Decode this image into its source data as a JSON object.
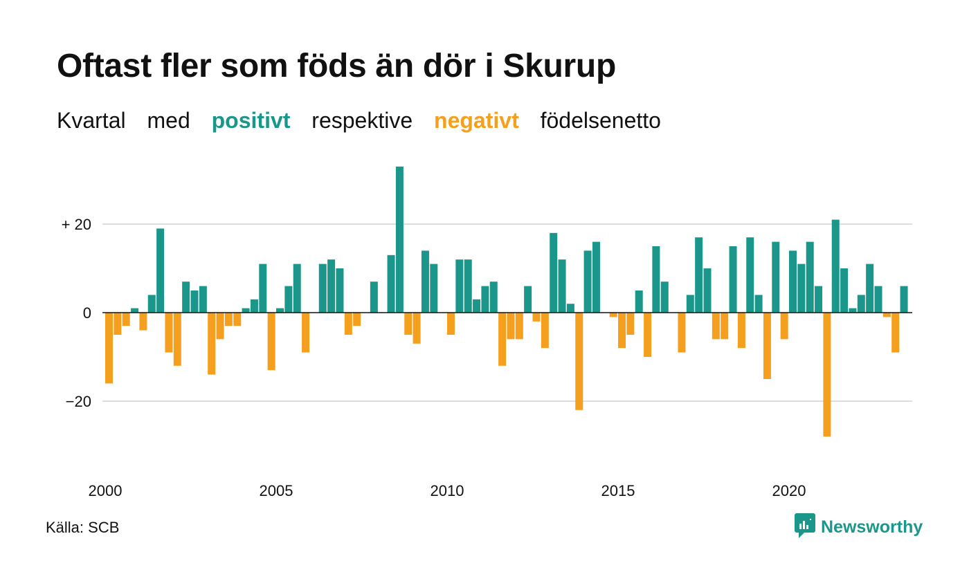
{
  "header": {
    "title": "Oftast fler som föds än dör i Skurup",
    "subtitle": {
      "w1": "Kvartal",
      "w2": "med",
      "w3": "positivt",
      "w4": "respektive",
      "w5": "negativt",
      "w6": "födelsenetto"
    }
  },
  "footer": {
    "source": "Källa: SCB",
    "brand": "Newsworthy"
  },
  "colors": {
    "positive": "#1b968a",
    "negative": "#f59f1f",
    "grid": "#dddddd",
    "axis": "#111111"
  },
  "icons": {
    "brand_logo": "newsworthy-logo-icon"
  },
  "chart_data": {
    "type": "bar",
    "title": "Oftast fler som föds än dör i Skurup",
    "subtitle": "Kvartal med positivt respektive negativt födelsenetto",
    "xlabel": "",
    "ylabel": "",
    "ylim": [
      -32,
      34
    ],
    "yticks": [
      {
        "value": 20,
        "label": "+ 20"
      },
      {
        "value": 0,
        "label": "0"
      },
      {
        "value": -20,
        "label": "−20"
      }
    ],
    "xticks": [
      {
        "year": 2000,
        "label": "2000"
      },
      {
        "year": 2005,
        "label": "2005"
      },
      {
        "year": 2010,
        "label": "2010"
      },
      {
        "year": 2015,
        "label": "2015"
      },
      {
        "year": 2020,
        "label": "2020"
      }
    ],
    "start": "2000 Q1",
    "grid": true,
    "legend": "none",
    "values": [
      -16,
      -5,
      -3,
      1,
      -4,
      4,
      19,
      -9,
      -12,
      7,
      5,
      6,
      -14,
      -6,
      -3,
      -3,
      1,
      3,
      11,
      -13,
      1,
      6,
      11,
      -9,
      0,
      11,
      12,
      10,
      -5,
      -3,
      0,
      7,
      0,
      13,
      33,
      -5,
      -7,
      14,
      11,
      0,
      -5,
      12,
      12,
      3,
      6,
      7,
      -12,
      -6,
      -6,
      6,
      -2,
      -8,
      18,
      12,
      2,
      -22,
      14,
      16,
      0,
      -1,
      -8,
      -5,
      5,
      -10,
      15,
      7,
      0,
      -9,
      4,
      17,
      10,
      -6,
      -6,
      15,
      -8,
      17,
      4,
      -15,
      16,
      -6,
      14,
      11,
      16,
      6,
      -28,
      21,
      10,
      1,
      4,
      11,
      6,
      -1,
      -9,
      6
    ]
  }
}
